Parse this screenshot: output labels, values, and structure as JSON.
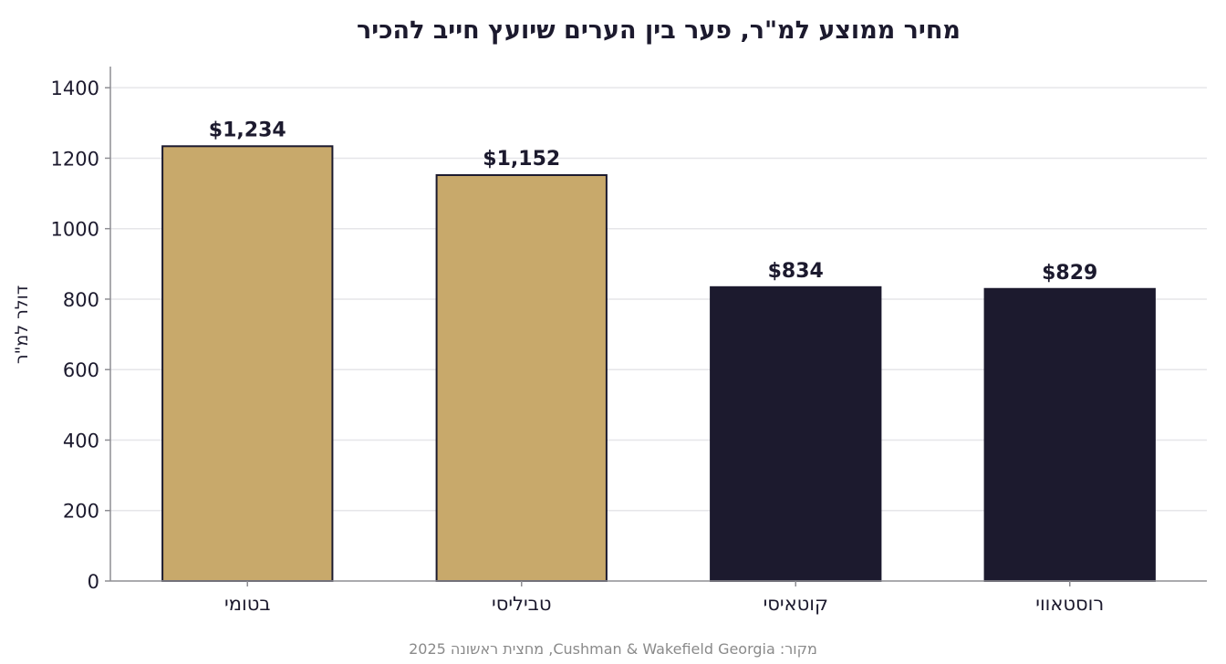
{
  "chart_data": {
    "type": "bar",
    "title": "מחיר ממוצע למ\"ר, פער בין הערים שיועץ חייב להכיר",
    "xlabel": "",
    "ylabel": "דולר למ\"ר",
    "categories": [
      "בטומי",
      "טביליסי",
      "קוטאיסי",
      "רוסטאווי"
    ],
    "values": [
      1234,
      1152,
      834,
      829
    ],
    "value_labels": [
      "$1,234",
      "$1,152",
      "$834",
      "$829"
    ],
    "bar_colors": [
      "#c8a96b",
      "#c8a96b",
      "#1c1a2e",
      "#1c1a2e"
    ],
    "bar_edge_color": "#1c1a2e",
    "ylim": [
      0,
      1460
    ],
    "yticks": [
      0,
      200,
      400,
      600,
      800,
      1000,
      1200,
      1400
    ],
    "grid": true,
    "source": "מקור: Cushman & Wakefield Georgia, מחצית ראשונה 2025"
  }
}
